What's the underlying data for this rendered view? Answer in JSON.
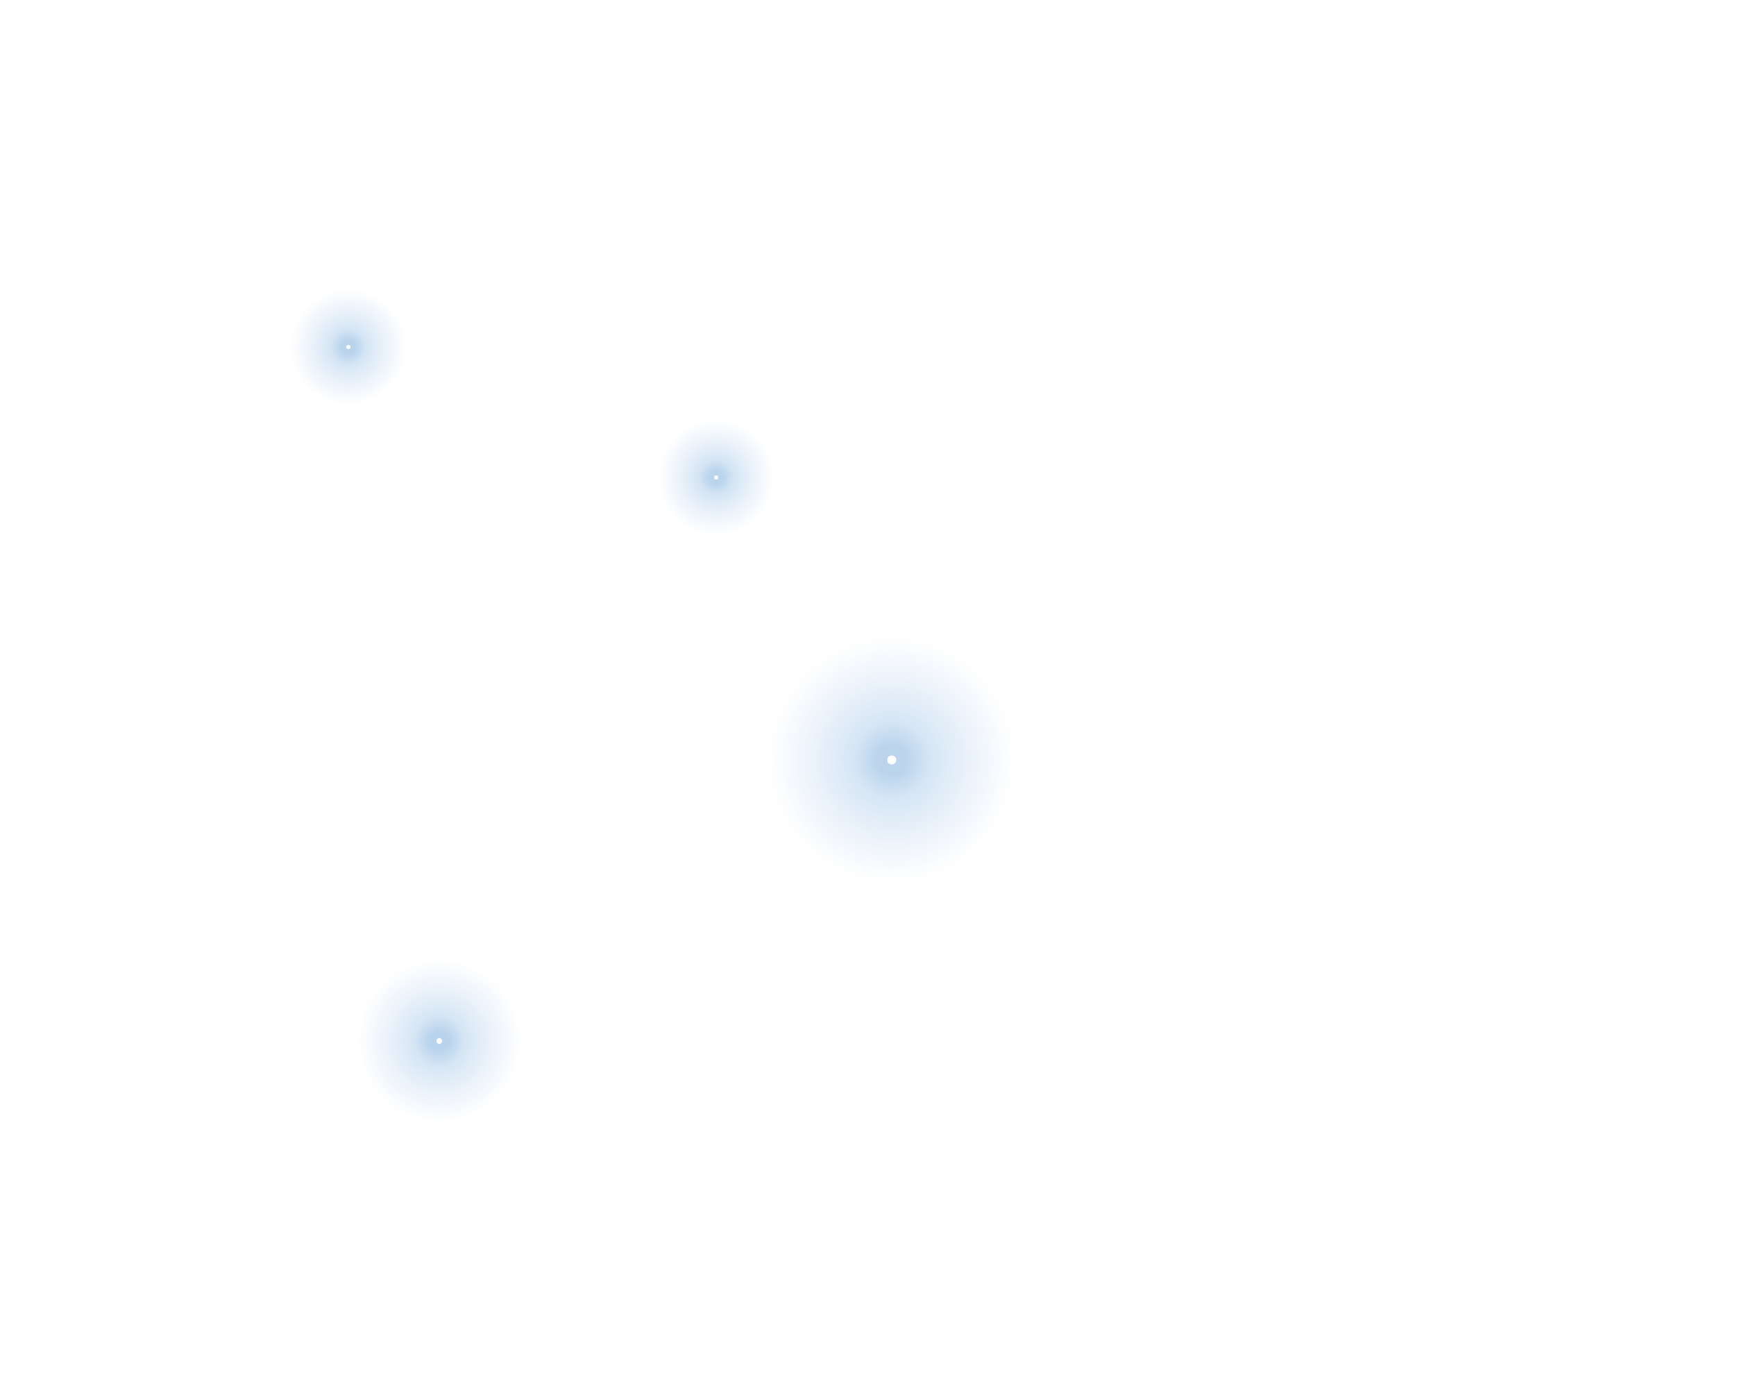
{
  "colors": {
    "background": "#ffffff",
    "glow": "#a9c9e8",
    "glow_mid": "#d6e6f5",
    "glow_outer": "#eef4fb",
    "core": "#ffffff"
  },
  "scene": {
    "description_elements": [
      "glow-orb-1",
      "glow-orb-2",
      "glow-orb-3",
      "glow-orb-4"
    ]
  }
}
